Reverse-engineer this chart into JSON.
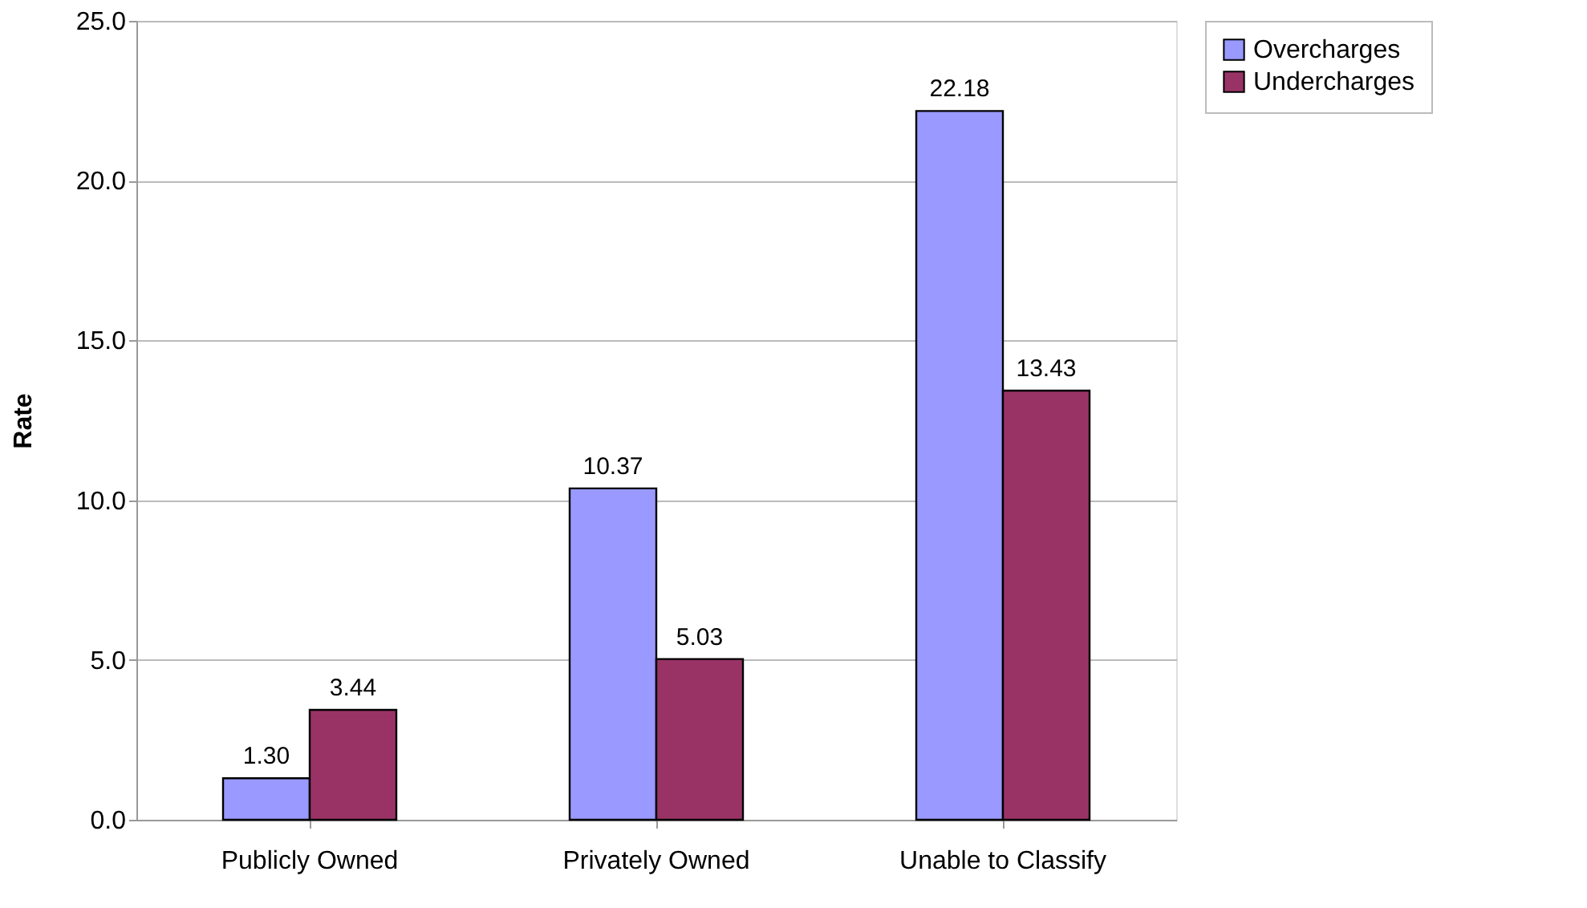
{
  "chart_data": {
    "type": "bar",
    "ylabel": "Rate",
    "categories": [
      "Publicly Owned",
      "Privately Owned",
      "Unable to Classify"
    ],
    "series": [
      {
        "name": "Overcharges",
        "color": "#9999ff",
        "values": [
          1.3,
          10.37,
          22.18
        ],
        "value_labels": [
          "1.30",
          "10.37",
          "22.18"
        ]
      },
      {
        "name": "Undercharges",
        "color": "#993366",
        "values": [
          3.44,
          5.03,
          13.43
        ],
        "value_labels": [
          "3.44",
          "5.03",
          "13.43"
        ]
      }
    ],
    "ylim": [
      0,
      25
    ],
    "yticks": [
      {
        "value": 0,
        "label": "0.0"
      },
      {
        "value": 5,
        "label": "5.0"
      },
      {
        "value": 10,
        "label": "10.0"
      },
      {
        "value": 15,
        "label": "15.0"
      },
      {
        "value": 20,
        "label": "20.0"
      },
      {
        "value": 25,
        "label": "25.0"
      }
    ],
    "grid": "y",
    "legend": "right"
  }
}
